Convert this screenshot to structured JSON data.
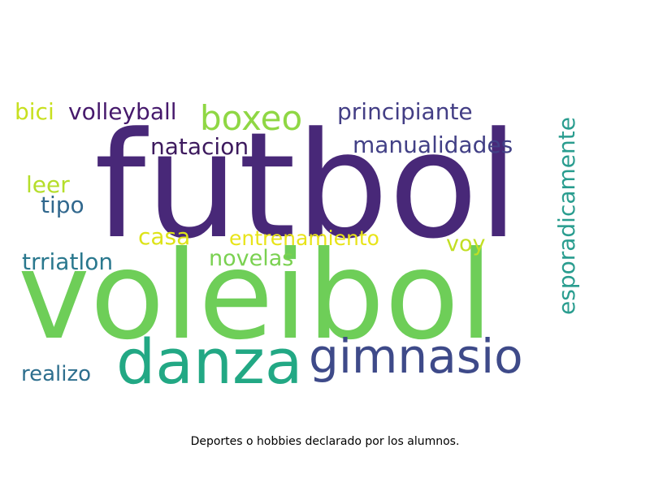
{
  "caption": "Deportes o hobbies declarado por los alumnos.",
  "words": {
    "futbol": {
      "text": "futbol",
      "color": "#482878"
    },
    "voleibol": {
      "text": "voleibol",
      "color": "#6ece58"
    },
    "danza": {
      "text": "danza",
      "color": "#22a884"
    },
    "gimnasio": {
      "text": "gimnasio",
      "color": "#3e4a89"
    },
    "boxeo": {
      "text": "boxeo",
      "color": "#8fd744"
    },
    "bici": {
      "text": "bici",
      "color": "#c8e020"
    },
    "volleyball": {
      "text": "volleyball",
      "color": "#46196c"
    },
    "principiante": {
      "text": "principiante",
      "color": "#433e85"
    },
    "natacion": {
      "text": "natacion",
      "color": "#3d1a5e"
    },
    "manualidades": {
      "text": "manualidades",
      "color": "#424086"
    },
    "esporadicamente": {
      "text": "esporadicamente",
      "color": "#2a9d8f"
    },
    "leer": {
      "text": "leer",
      "color": "#b5de2b"
    },
    "tipo": {
      "text": "tipo",
      "color": "#31688e"
    },
    "casa": {
      "text": "casa",
      "color": "#dde318"
    },
    "entrenamiento": {
      "text": "entrenamiento",
      "color": "#e8e419"
    },
    "voy": {
      "text": "voy",
      "color": "#c2df23"
    },
    "trriatlon": {
      "text": "trriatlon",
      "color": "#2a788e"
    },
    "novelas": {
      "text": "novelas",
      "color": "#7ad151"
    },
    "realizo": {
      "text": "realizo",
      "color": "#2e6f8e"
    }
  }
}
